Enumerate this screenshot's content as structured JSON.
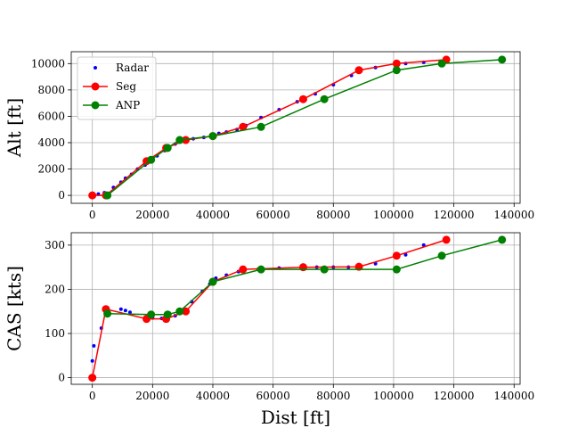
{
  "chart_data": [
    {
      "type": "line",
      "ylabel": "Alt [ft]",
      "xlabel": "",
      "xlim": [
        -7000,
        142000
      ],
      "ylim": [
        -600,
        10900
      ],
      "xticks": [
        0,
        20000,
        40000,
        60000,
        80000,
        100000,
        120000,
        140000
      ],
      "xtick_labels": [
        "0",
        "20000",
        "40000",
        "60000",
        "80000",
        "100000",
        "120000",
        "140000"
      ],
      "yticks": [
        0,
        2000,
        4000,
        6000,
        8000,
        10000
      ],
      "ytick_labels": [
        "0",
        "2000",
        "4000",
        "6000",
        "8000",
        "10000"
      ],
      "grid": true,
      "legend": {
        "position": "top-left",
        "entries": [
          "Radar",
          "Seg",
          "ANP"
        ]
      },
      "series": [
        {
          "name": "Radar",
          "style": "points",
          "color": "#0000ff",
          "x": [
            0,
            2000,
            4000,
            7000,
            9500,
            11000,
            13000,
            15000,
            17500,
            19500,
            21500,
            24000,
            25500,
            27500,
            29000,
            31000,
            33500,
            37000,
            40000,
            42000,
            44500,
            48000,
            51000,
            56000,
            62000,
            68000,
            70000,
            74000,
            80000,
            86000,
            88000,
            94000,
            104000,
            110000,
            117500
          ],
          "y": [
            0,
            100,
            200,
            600,
            1000,
            1300,
            1600,
            2000,
            2300,
            2700,
            3000,
            3400,
            3600,
            3900,
            4100,
            4200,
            4300,
            4400,
            4500,
            4700,
            4800,
            5000,
            5300,
            5900,
            6500,
            7100,
            7400,
            7700,
            8400,
            9100,
            9500,
            9700,
            10000,
            10100,
            10300
          ]
        },
        {
          "name": "Seg",
          "style": "line-markers",
          "color": "#ff0000",
          "x": [
            0,
            4500,
            18000,
            24500,
            31000,
            40000,
            50000,
            70000,
            88500,
            101000,
            117500
          ],
          "y": [
            0,
            0,
            2600,
            3600,
            4200,
            4500,
            5200,
            7300,
            9500,
            10000,
            10300
          ]
        },
        {
          "name": "ANP",
          "style": "line-markers",
          "color": "#008000",
          "x": [
            5000,
            19500,
            25000,
            29000,
            40000,
            56000,
            77000,
            101000,
            116000,
            136000
          ],
          "y": [
            0,
            2700,
            3600,
            4200,
            4500,
            5200,
            7300,
            9500,
            10000,
            10300
          ]
        }
      ]
    },
    {
      "type": "line",
      "ylabel": "CAS [kts]",
      "xlabel": "Dist [ft]",
      "xlim": [
        -7000,
        142000
      ],
      "ylim": [
        -15,
        328
      ],
      "xticks": [
        0,
        20000,
        40000,
        60000,
        80000,
        100000,
        120000,
        140000
      ],
      "xtick_labels": [
        "0",
        "20000",
        "40000",
        "60000",
        "80000",
        "100000",
        "120000",
        "140000"
      ],
      "yticks": [
        0,
        100,
        200,
        300
      ],
      "ytick_labels": [
        "0",
        "100",
        "200",
        "300"
      ],
      "grid": true,
      "series": [
        {
          "name": "Radar",
          "style": "points",
          "color": "#0000ff",
          "x": [
            0,
            500,
            3000,
            4500,
            9500,
            11000,
            12500,
            17500,
            20000,
            23000,
            25000,
            27500,
            29500,
            33000,
            36500,
            39000,
            41000,
            44500,
            48500,
            55000,
            62000,
            70000,
            74500,
            80000,
            85000,
            89000,
            94000,
            104000,
            110000,
            117000
          ],
          "y": [
            38,
            72,
            112,
            155,
            155,
            152,
            148,
            135,
            135,
            134,
            135,
            140,
            150,
            172,
            195,
            212,
            225,
            232,
            240,
            245,
            248,
            250,
            250,
            250,
            250,
            252,
            258,
            278,
            300,
            312
          ]
        },
        {
          "name": "Seg",
          "style": "line-markers",
          "color": "#ff0000",
          "x": [
            0,
            4500,
            18000,
            24500,
            31000,
            40000,
            50000,
            70000,
            88500,
            101000,
            117500
          ],
          "y": [
            0,
            155,
            133,
            133,
            150,
            217,
            245,
            250,
            251,
            276,
            312
          ]
        },
        {
          "name": "ANP",
          "style": "line-markers",
          "color": "#008000",
          "x": [
            5000,
            19500,
            25000,
            29000,
            40000,
            56000,
            77000,
            101000,
            116000,
            136000
          ],
          "y": [
            145,
            143,
            143,
            150,
            217,
            245,
            245,
            245,
            276,
            312
          ]
        }
      ]
    }
  ]
}
